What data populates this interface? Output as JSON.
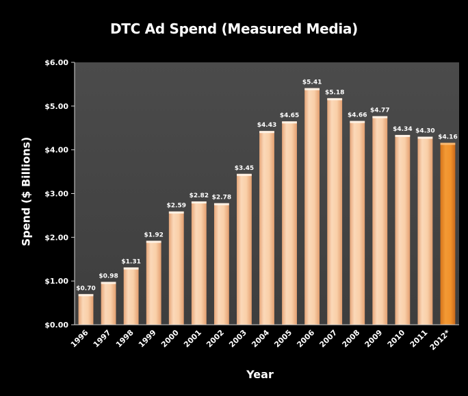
{
  "chart_data": {
    "type": "bar",
    "title": "DTC Ad Spend (Measured Media)",
    "xlabel": "Year",
    "ylabel": "Spend ($ Billions)",
    "ylim": [
      0,
      6
    ],
    "yticks": [
      "$0.00",
      "$1.00",
      "$2.00",
      "$3.00",
      "$4.00",
      "$5.00",
      "$6.00"
    ],
    "categories": [
      "1996",
      "1997",
      "1998",
      "1999",
      "2000",
      "2001",
      "2002",
      "2003",
      "2004",
      "2005",
      "2006",
      "2007",
      "2008",
      "2009",
      "2010",
      "2011",
      "2012*"
    ],
    "values": [
      0.7,
      0.98,
      1.31,
      1.92,
      2.59,
      2.82,
      2.78,
      3.45,
      4.43,
      4.65,
      5.41,
      5.18,
      4.66,
      4.77,
      4.34,
      4.3,
      4.16
    ],
    "data_labels": [
      "$0.70",
      "$0.98",
      "$1.31",
      "$1.92",
      "$2.59",
      "$2.82",
      "$2.78",
      "$3.45",
      "$4.43",
      "$4.65",
      "$5.41",
      "$5.18",
      "$4.66",
      "$4.77",
      "$4.34",
      "$4.30",
      "$4.16"
    ],
    "highlight_index": 16,
    "grid": false,
    "colors": {
      "plot_background": "#454545",
      "bar": "#f7c9a0",
      "bar_highlight": "#ef8a22",
      "axis": "#d8d8d8",
      "page_background": "#000000"
    }
  }
}
